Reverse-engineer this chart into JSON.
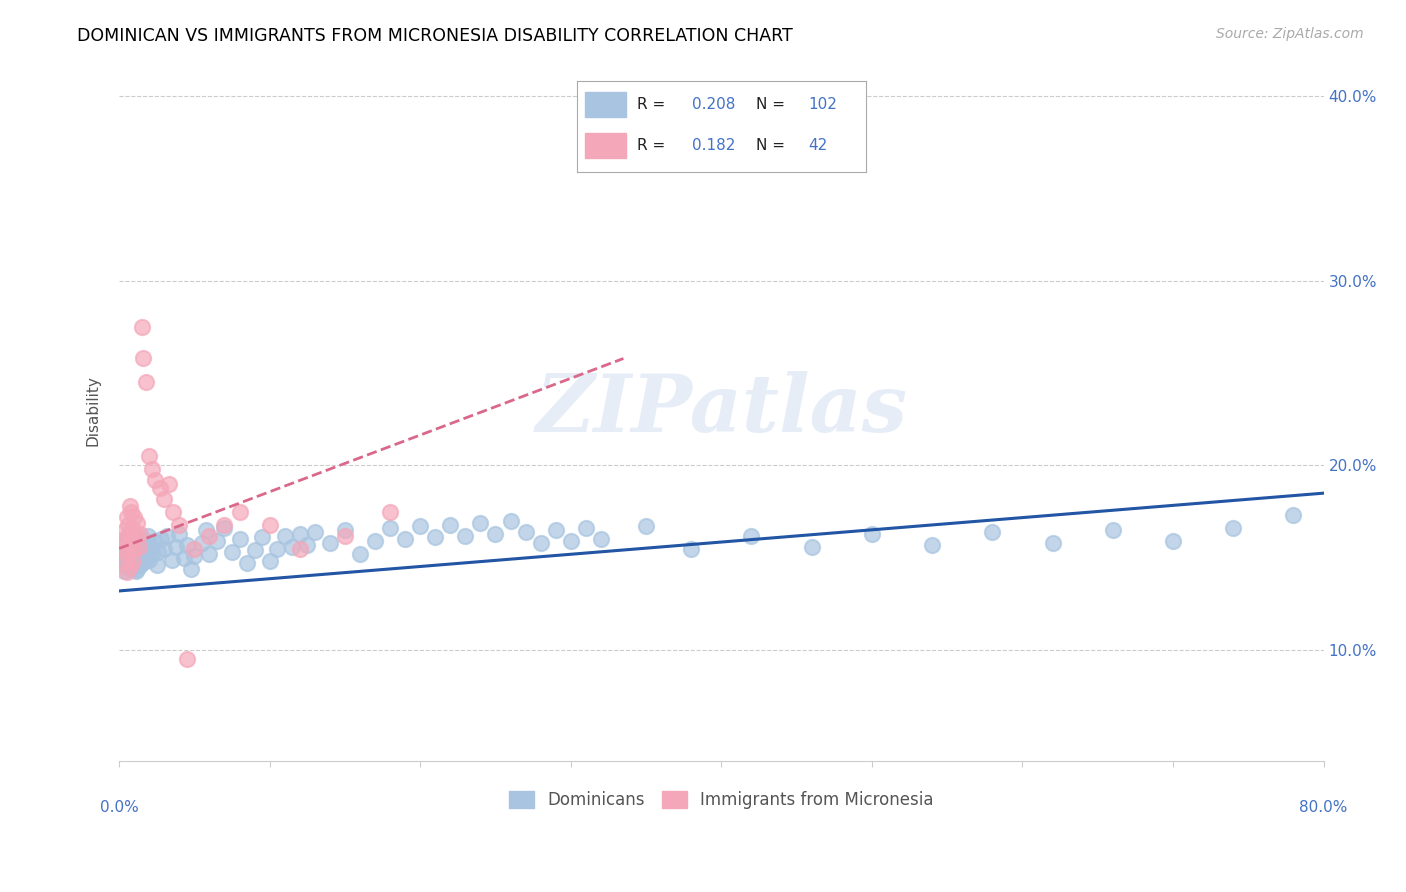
{
  "title": "DOMINICAN VS IMMIGRANTS FROM MICRONESIA DISABILITY CORRELATION CHART",
  "source": "Source: ZipAtlas.com",
  "ylabel": "Disability",
  "xmin": 0.0,
  "xmax": 0.8,
  "ymin": 0.04,
  "ymax": 0.42,
  "dominicans_color": "#a8c4e0",
  "micronesia_color": "#f4a7b9",
  "dominicans_line_color": "#2255a4",
  "micronesia_line_color": "#d9688a",
  "r_dominicans": 0.208,
  "n_dominicans": 102,
  "r_micronesia": 0.182,
  "n_micronesia": 42,
  "watermark": "ZIPatlas",
  "dominicans_x": [
    0.003,
    0.003,
    0.003,
    0.004,
    0.004,
    0.005,
    0.005,
    0.005,
    0.006,
    0.006,
    0.006,
    0.007,
    0.007,
    0.007,
    0.008,
    0.008,
    0.008,
    0.009,
    0.009,
    0.009,
    0.01,
    0.01,
    0.01,
    0.01,
    0.011,
    0.011,
    0.012,
    0.012,
    0.013,
    0.013,
    0.014,
    0.014,
    0.015,
    0.015,
    0.016,
    0.017,
    0.018,
    0.019,
    0.02,
    0.021,
    0.022,
    0.023,
    0.025,
    0.026,
    0.028,
    0.03,
    0.032,
    0.035,
    0.038,
    0.04,
    0.043,
    0.045,
    0.048,
    0.05,
    0.055,
    0.058,
    0.06,
    0.065,
    0.07,
    0.075,
    0.08,
    0.085,
    0.09,
    0.095,
    0.1,
    0.105,
    0.11,
    0.115,
    0.12,
    0.125,
    0.13,
    0.14,
    0.15,
    0.16,
    0.17,
    0.18,
    0.19,
    0.2,
    0.21,
    0.22,
    0.23,
    0.24,
    0.25,
    0.26,
    0.27,
    0.28,
    0.29,
    0.3,
    0.31,
    0.32,
    0.35,
    0.38,
    0.42,
    0.46,
    0.5,
    0.54,
    0.58,
    0.62,
    0.66,
    0.7,
    0.74,
    0.78
  ],
  "dominicans_y": [
    0.148,
    0.155,
    0.143,
    0.151,
    0.158,
    0.145,
    0.152,
    0.16,
    0.147,
    0.154,
    0.162,
    0.149,
    0.156,
    0.164,
    0.151,
    0.158,
    0.144,
    0.152,
    0.159,
    0.147,
    0.154,
    0.161,
    0.148,
    0.155,
    0.143,
    0.15,
    0.157,
    0.144,
    0.151,
    0.159,
    0.146,
    0.153,
    0.16,
    0.147,
    0.154,
    0.148,
    0.155,
    0.162,
    0.149,
    0.156,
    0.152,
    0.159,
    0.146,
    0.153,
    0.16,
    0.155,
    0.162,
    0.149,
    0.156,
    0.163,
    0.15,
    0.157,
    0.144,
    0.151,
    0.158,
    0.165,
    0.152,
    0.159,
    0.166,
    0.153,
    0.16,
    0.147,
    0.154,
    0.161,
    0.148,
    0.155,
    0.162,
    0.156,
    0.163,
    0.157,
    0.164,
    0.158,
    0.165,
    0.152,
    0.159,
    0.166,
    0.16,
    0.167,
    0.161,
    0.168,
    0.162,
    0.169,
    0.163,
    0.17,
    0.164,
    0.158,
    0.165,
    0.159,
    0.166,
    0.16,
    0.167,
    0.155,
    0.162,
    0.156,
    0.163,
    0.157,
    0.164,
    0.158,
    0.165,
    0.159,
    0.166,
    0.173
  ],
  "micronesia_x": [
    0.003,
    0.003,
    0.004,
    0.004,
    0.005,
    0.005,
    0.005,
    0.006,
    0.006,
    0.007,
    0.007,
    0.007,
    0.008,
    0.008,
    0.009,
    0.009,
    0.01,
    0.01,
    0.011,
    0.012,
    0.013,
    0.014,
    0.015,
    0.016,
    0.018,
    0.02,
    0.022,
    0.024,
    0.027,
    0.03,
    0.033,
    0.036,
    0.04,
    0.045,
    0.05,
    0.06,
    0.07,
    0.08,
    0.1,
    0.12,
    0.15,
    0.18
  ],
  "micronesia_y": [
    0.16,
    0.155,
    0.165,
    0.148,
    0.172,
    0.158,
    0.142,
    0.168,
    0.152,
    0.178,
    0.162,
    0.145,
    0.175,
    0.158,
    0.165,
    0.148,
    0.172,
    0.155,
    0.162,
    0.169,
    0.156,
    0.163,
    0.275,
    0.258,
    0.245,
    0.205,
    0.198,
    0.192,
    0.188,
    0.182,
    0.19,
    0.175,
    0.168,
    0.095,
    0.155,
    0.162,
    0.168,
    0.175,
    0.168,
    0.155,
    0.162,
    0.175
  ],
  "dom_line_x0": 0.0,
  "dom_line_x1": 0.8,
  "dom_line_y0": 0.132,
  "dom_line_y1": 0.185,
  "mic_line_x0": 0.0,
  "mic_line_x1": 0.335,
  "mic_line_y0": 0.155,
  "mic_line_y1": 0.258
}
